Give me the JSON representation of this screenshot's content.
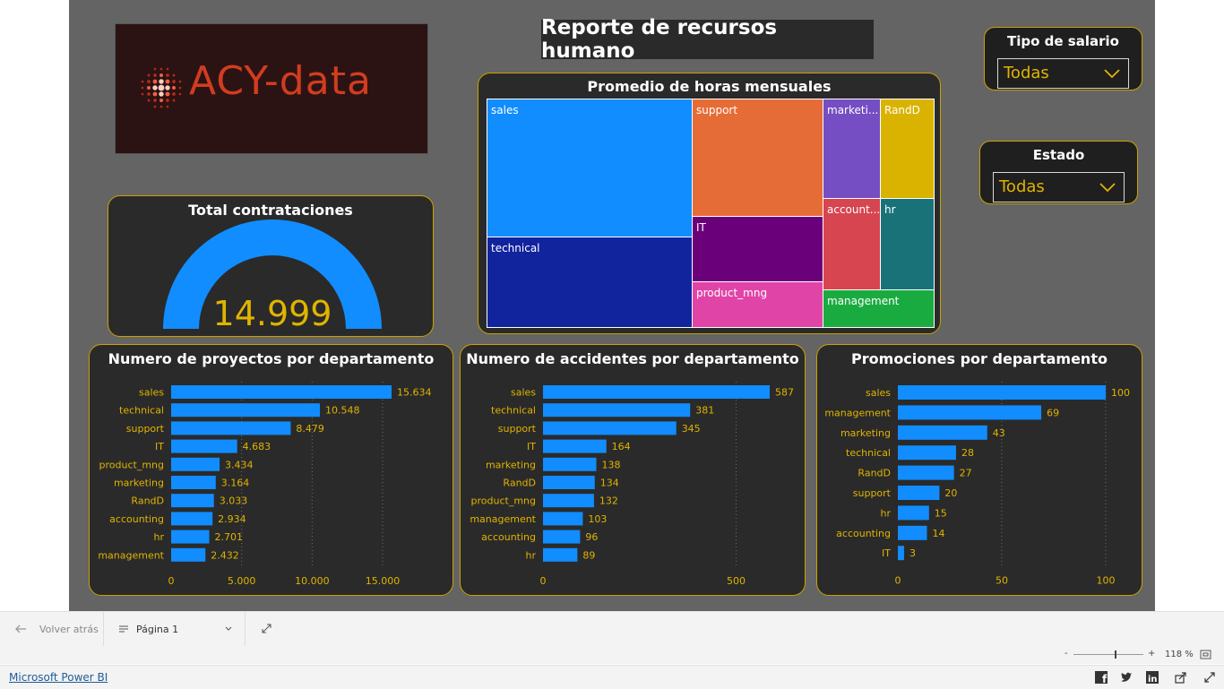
{
  "report_title": "Reporte de recursos humano",
  "logo_text": "ACY-data",
  "slicers": [
    {
      "title": "Tipo de salario",
      "value": "Todas"
    },
    {
      "title": "Estado",
      "value": "Todas"
    }
  ],
  "colors": {
    "bar": "#118dff",
    "label": "#e0b400",
    "card_border": "#c8a200",
    "card_bg": "#2a2a2a",
    "canvas_bg": "#646464"
  },
  "gauge": {
    "title": "Total contrataciones",
    "value_label": "14.999",
    "fill_fraction": 1.0,
    "color": "#118dff"
  },
  "treemap": {
    "title": "Promedio de horas mensuales",
    "cells": [
      {
        "label": "sales",
        "color": "#118dff"
      },
      {
        "label": "technical",
        "color": "#12239e"
      },
      {
        "label": "support",
        "color": "#e66c37"
      },
      {
        "label": "IT",
        "color": "#6b007b"
      },
      {
        "label": "product_mng",
        "color": "#e044a7"
      },
      {
        "label": "marketi...",
        "color": "#744ec2"
      },
      {
        "label": "RandD",
        "color": "#d9b300"
      },
      {
        "label": "account...",
        "color": "#d64550"
      },
      {
        "label": "hr",
        "color": "#197278"
      },
      {
        "label": "management",
        "color": "#1aab40"
      }
    ]
  },
  "chart_data": [
    {
      "type": "bar",
      "orientation": "horizontal",
      "title": "Numero de proyectos por departamento",
      "categories": [
        "sales",
        "technical",
        "support",
        "IT",
        "product_mng",
        "marketing",
        "RandD",
        "accounting",
        "hr",
        "management"
      ],
      "values": [
        15634,
        10548,
        8479,
        4683,
        3434,
        3164,
        3033,
        2934,
        2701,
        2432
      ],
      "value_labels": [
        "15.634",
        "10.548",
        "8.479",
        "4.683",
        "3.434",
        "3.164",
        "3.033",
        "2.934",
        "2.701",
        "2.432"
      ],
      "xlim": [
        0,
        15634
      ],
      "ticks": [
        0,
        5000,
        10000,
        15000
      ],
      "tick_labels": [
        "0",
        "5.000",
        "10.000",
        "15.000"
      ],
      "grid": "vertical dotted"
    },
    {
      "type": "bar",
      "orientation": "horizontal",
      "title": "Numero de accidentes por departamento",
      "categories": [
        "sales",
        "technical",
        "support",
        "IT",
        "marketing",
        "RandD",
        "product_mng",
        "management",
        "accounting",
        "hr"
      ],
      "values": [
        587,
        381,
        345,
        164,
        138,
        134,
        132,
        103,
        96,
        89
      ],
      "value_labels": [
        "587",
        "381",
        "345",
        "164",
        "138",
        "134",
        "132",
        "103",
        "96",
        "89"
      ],
      "xlim": [
        0,
        587
      ],
      "ticks": [
        0,
        500
      ],
      "tick_labels": [
        "0",
        "500"
      ],
      "grid": "vertical dotted"
    },
    {
      "type": "bar",
      "orientation": "horizontal",
      "title": "Promociones por departamento",
      "categories": [
        "sales",
        "management",
        "marketing",
        "technical",
        "RandD",
        "support",
        "hr",
        "accounting",
        "IT"
      ],
      "values": [
        100,
        69,
        43,
        28,
        27,
        20,
        15,
        14,
        3
      ],
      "value_labels": [
        "100",
        "69",
        "43",
        "28",
        "27",
        "20",
        "15",
        "14",
        "3"
      ],
      "xlim": [
        0,
        100
      ],
      "ticks": [
        0,
        50,
        100
      ],
      "tick_labels": [
        "0",
        "50",
        "100"
      ],
      "grid": "vertical dotted"
    }
  ],
  "nav": {
    "back_label": "Volver atrás",
    "page_label": "Página 1"
  },
  "zoom": {
    "minus": "-",
    "plus": "+",
    "value_label": "118 %",
    "level_fraction": 0.6
  },
  "footer": {
    "powerbi_link": "Microsoft Power BI",
    "share_icons": [
      "facebook-icon",
      "twitter-icon",
      "linkedin-icon",
      "share-icon",
      "expand-icon"
    ]
  }
}
